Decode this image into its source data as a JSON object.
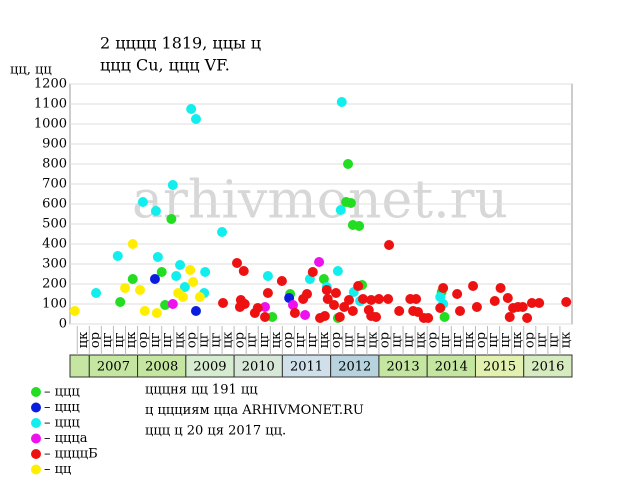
{
  "chart_data": {
    "type": "scatter",
    "title": "2 цццц 1819, ццы ц",
    "subtitle": "ццц Cu, ццц VF.",
    "y_label": "цц, цц",
    "watermark": "arhivmonet.ru",
    "xlim": [
      2006.6,
      2017
    ],
    "ylim": [
      0,
      1200
    ],
    "yticks": [
      0,
      100,
      200,
      300,
      400,
      500,
      600,
      700,
      800,
      900,
      1000,
      1100,
      1200
    ],
    "grid": true,
    "years": [
      "2007",
      "2008",
      "2009",
      "2010",
      "2011",
      "2012",
      "2013",
      "2014",
      "2015",
      "2016"
    ],
    "year_colors": [
      "#c4e6a0",
      "#c4e6a0",
      "#d6ecd0",
      "#d8e8d8",
      "#cfe0ea",
      "#b7d3de",
      "#c4e6a0",
      "#c4e6a0",
      "#e2f0b0",
      "#d6ecc0"
    ],
    "x_sublabels": [
      "цк",
      "ор",
      "цг",
      "цг",
      "цк",
      "ор",
      "цг",
      "цг",
      "цк",
      "ор",
      "цг",
      "цг",
      "цк",
      "ор",
      "цг",
      "цг",
      "цк",
      "ор",
      "цг",
      "цг",
      "цк",
      "ор",
      "цг",
      "цг",
      "цк",
      "ор",
      "цг",
      "цг",
      "цк",
      "ор",
      "цг",
      "цг",
      "цк",
      "ор",
      "цг",
      "цг",
      "цк",
      "ор",
      "цг",
      "цг",
      "цк"
    ],
    "series": [
      {
        "name": "– ццц",
        "color": "#22dd22",
        "x": [
          2007.9,
          2007.64,
          2008.5,
          2008.57,
          2008.7,
          2010.79,
          2011.16,
          2011.86,
          2012.36,
          2012.32,
          2012.42,
          2012.46,
          2012.59,
          2012.65,
          2014.3,
          2014.36,
          2012.15
        ],
        "values": [
          225,
          110,
          260,
          95,
          525,
          35,
          150,
          225,
          800,
          610,
          605,
          495,
          490,
          195,
          160,
          35,
          30
        ]
      },
      {
        "name": "– ццц",
        "color": "#0a1ee0",
        "x": [
          2008.36,
          2009.21,
          2011.14
        ],
        "values": [
          225,
          65,
          130
        ]
      },
      {
        "name": "– ццц",
        "color": "#11eeee",
        "x": [
          2007.14,
          2007.59,
          2008.11,
          2008.38,
          2008.42,
          2008.73,
          2008.8,
          2008.88,
          2008.98,
          2009.11,
          2009.21,
          2009.38,
          2009.4,
          2009.75,
          2010.7,
          2011.57,
          2011.92,
          2012.15,
          2012.23,
          2012.21,
          2012.48,
          2012.61,
          2014.27,
          2014.33
        ],
        "values": [
          155,
          340,
          610,
          565,
          335,
          695,
          240,
          295,
          185,
          1075,
          1025,
          155,
          260,
          460,
          240,
          225,
          185,
          265,
          1110,
          570,
          160,
          115,
          135,
          100
        ]
      },
      {
        "name": "– ццца",
        "color": "#ee11ee",
        "x": [
          2008.73,
          2010.64,
          2011.22,
          2011.47,
          2011.76
        ],
        "values": [
          100,
          85,
          95,
          45,
          310
        ]
      },
      {
        "name": "– ццццБ",
        "color": "#ee1111",
        "x": [
          2009.77,
          2010.06,
          2010.2,
          2010.14,
          2010.22,
          2010.12,
          2010.43,
          2010.49,
          2010.64,
          2010.7,
          2010.99,
          2011.26,
          2011.43,
          2011.51,
          2011.63,
          2011.78,
          2011.88,
          2011.92,
          2011.94,
          2012.07,
          2012.11,
          2012.19,
          2012.28,
          2012.38,
          2012.46,
          2012.57,
          2012.67,
          2012.79,
          2012.84,
          2012.84,
          2012.94,
          2013.0,
          2013.19,
          2013.21,
          2013.42,
          2013.65,
          2013.71,
          2013.77,
          2013.81,
          2013.93,
          2014.02,
          2014.27,
          2014.33,
          2014.62,
          2014.68,
          2014.95,
          2015.03,
          2015.4,
          2015.52,
          2015.67,
          2015.78,
          2015.71,
          2015.88,
          2015.98,
          2016.07,
          2016.17,
          2016.32,
          2016.88
        ],
        "values": [
          105,
          305,
          265,
          120,
          100,
          85,
          55,
          80,
          35,
          155,
          215,
          55,
          125,
          150,
          260,
          30,
          40,
          170,
          125,
          95,
          155,
          35,
          85,
          120,
          65,
          190,
          125,
          70,
          40,
          120,
          35,
          125,
          125,
          395,
          65,
          125,
          65,
          125,
          60,
          30,
          30,
          80,
          180,
          150,
          65,
          190,
          85,
          115,
          180,
          130,
          80,
          35,
          85,
          85,
          30,
          105,
          105,
          110
        ]
      },
      {
        "name": "– цц",
        "color": "#ffee00",
        "x": [
          2006.7,
          2007.74,
          2007.9,
          2008.05,
          2008.15,
          2008.4,
          2008.84,
          2008.94,
          2009.09,
          2009.15,
          2009.29
        ],
        "values": [
          65,
          180,
          400,
          170,
          65,
          55,
          155,
          135,
          270,
          210,
          135
        ]
      }
    ],
    "notes": [
      "цццня цц 191 цц",
      "ц ццциям ццa ARHIVMONET.RU",
      "ццц ц 20 ця 2017 цц."
    ]
  }
}
